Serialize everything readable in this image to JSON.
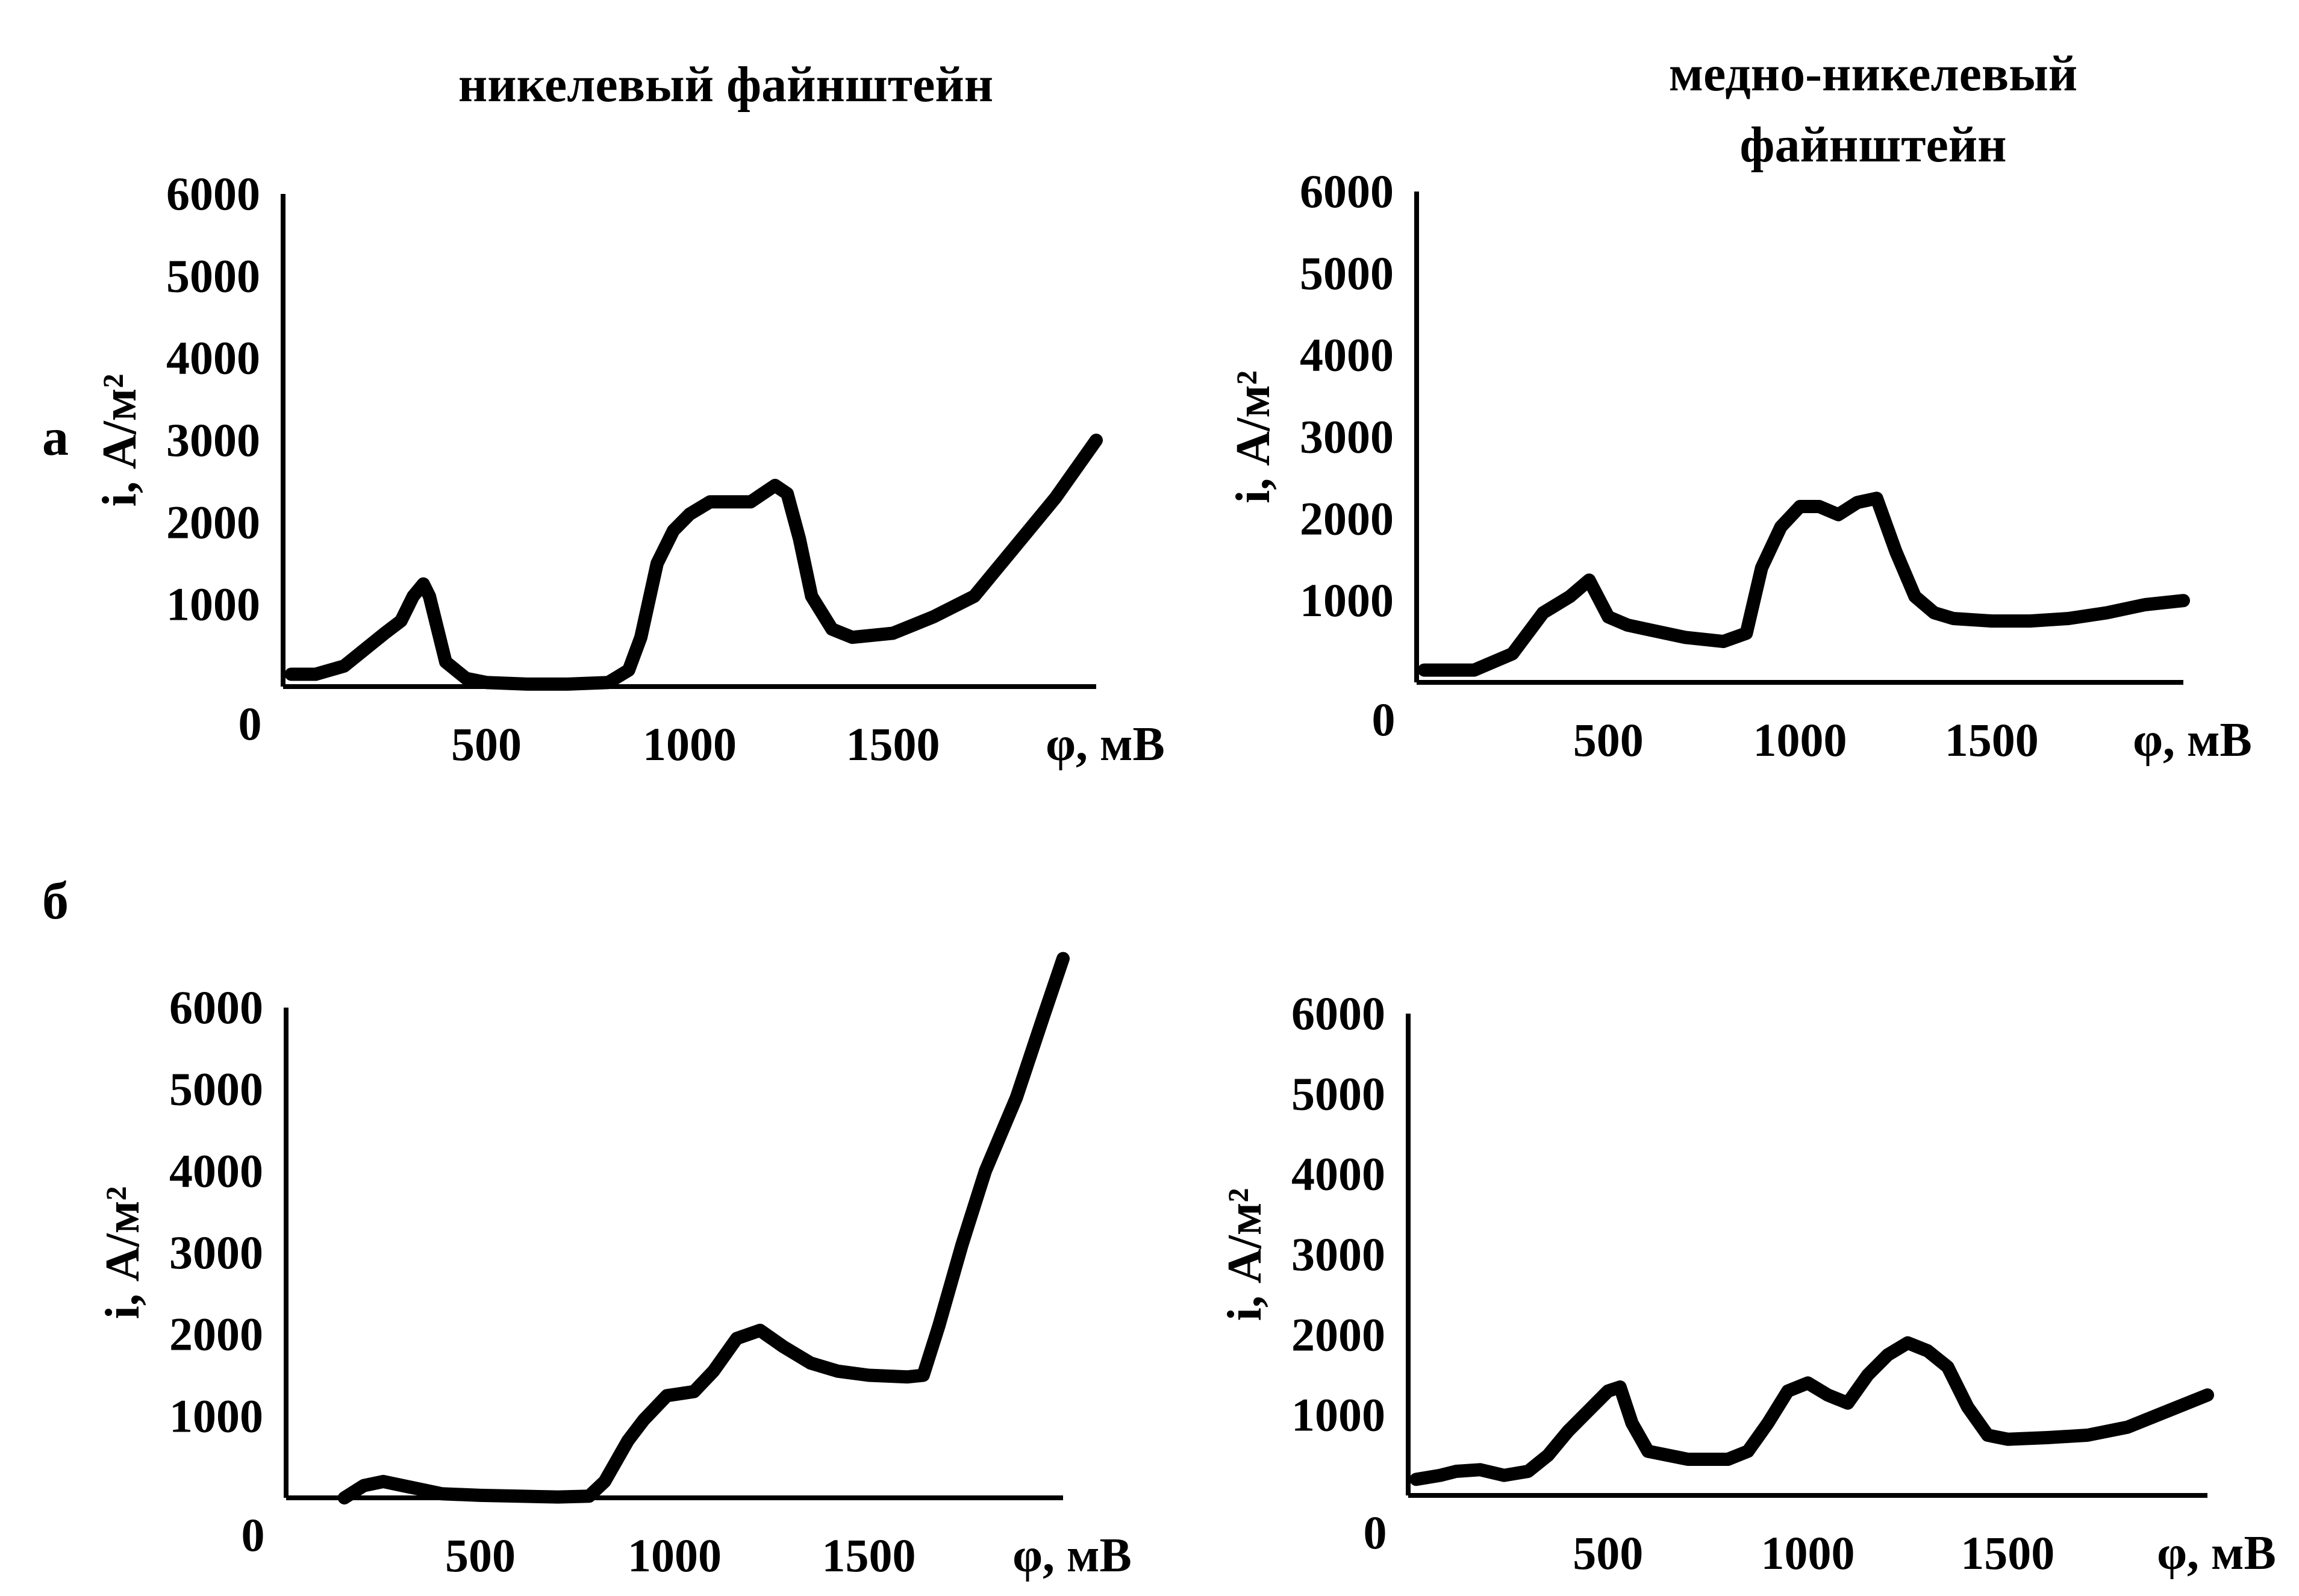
{
  "headings": {
    "left": "никелевый файнштейн",
    "right_line1": "медно-никелевый",
    "right_line2": "файнштейн"
  },
  "row_labels": {
    "a": "а",
    "b": "б"
  },
  "chart_data": [
    {
      "type": "line",
      "xlabel": "φ, мВ",
      "ylabel": "i, А/м²",
      "origin_label": "0",
      "xticks": [
        500,
        1000,
        1500
      ],
      "yticks": [
        1000,
        2000,
        3000,
        4000,
        5000,
        6000
      ],
      "xlim": [
        0,
        2000
      ],
      "ylim": [
        0,
        6000
      ],
      "series": [
        {
          "x": [
            20,
            80,
            150,
            200,
            250,
            290,
            320,
            345,
            360,
            400,
            450,
            500,
            600,
            700,
            800,
            850,
            880,
            920,
            960,
            1000,
            1050,
            1100,
            1150,
            1180,
            1210,
            1240,
            1270,
            1300,
            1350,
            1400,
            1500,
            1600,
            1700,
            1800,
            1900,
            2000
          ],
          "y": [
            150,
            150,
            250,
            450,
            650,
            800,
            1100,
            1250,
            1100,
            300,
            100,
            50,
            30,
            30,
            50,
            200,
            600,
            1500,
            1900,
            2100,
            2250,
            2250,
            2250,
            2350,
            2450,
            2350,
            1800,
            1100,
            700,
            600,
            650,
            850,
            1100,
            1700,
            2300,
            3000
          ]
        }
      ]
    },
    {
      "type": "line",
      "xlabel": "φ, мВ",
      "ylabel": "i, А/м²",
      "origin_label": "0",
      "xticks": [
        500,
        1000,
        1500
      ],
      "yticks": [
        1000,
        2000,
        3000,
        4000,
        5000,
        6000
      ],
      "xlim": [
        0,
        2000
      ],
      "ylim": [
        0,
        6000
      ],
      "series": [
        {
          "x": [
            20,
            150,
            250,
            330,
            400,
            450,
            500,
            550,
            600,
            700,
            800,
            860,
            900,
            950,
            1000,
            1050,
            1100,
            1150,
            1200,
            1250,
            1300,
            1350,
            1400,
            1500,
            1600,
            1700,
            1800,
            1900,
            2000
          ],
          "y": [
            150,
            150,
            350,
            850,
            1050,
            1250,
            800,
            700,
            650,
            550,
            500,
            600,
            1400,
            1900,
            2150,
            2150,
            2050,
            2200,
            2250,
            1600,
            1050,
            850,
            780,
            750,
            750,
            780,
            850,
            950,
            1000
          ]
        }
      ]
    },
    {
      "type": "line",
      "xlabel": "φ, мВ",
      "ylabel": "i, А/м²",
      "origin_label": "0",
      "xticks": [
        500,
        1000,
        1500
      ],
      "yticks": [
        1000,
        2000,
        3000,
        4000,
        5000,
        6000
      ],
      "xlim": [
        0,
        2000
      ],
      "ylim": [
        0,
        6000
      ],
      "series": [
        {
          "x": [
            150,
            200,
            250,
            300,
            350,
            400,
            500,
            600,
            700,
            780,
            820,
            880,
            920,
            980,
            1050,
            1100,
            1160,
            1220,
            1280,
            1350,
            1420,
            1500,
            1600,
            1640,
            1680,
            1740,
            1800,
            1880,
            1950,
            2000
          ],
          "y": [
            0,
            150,
            200,
            150,
            100,
            50,
            30,
            20,
            10,
            20,
            200,
            700,
            950,
            1250,
            1300,
            1550,
            1950,
            2050,
            1850,
            1650,
            1550,
            1500,
            1480,
            1500,
            2100,
            3100,
            4000,
            4900,
            5900,
            6600
          ]
        }
      ]
    },
    {
      "type": "line",
      "xlabel": "φ, мВ",
      "ylabel": "i, А/м²",
      "origin_label": "0",
      "xticks": [
        500,
        1000,
        1500
      ],
      "yticks": [
        1000,
        2000,
        3000,
        4000,
        5000,
        6000
      ],
      "xlim": [
        0,
        2000
      ],
      "ylim": [
        0,
        6000
      ],
      "series": [
        {
          "x": [
            20,
            80,
            120,
            180,
            240,
            300,
            350,
            400,
            450,
            500,
            530,
            560,
            600,
            700,
            800,
            850,
            900,
            950,
            1000,
            1050,
            1100,
            1150,
            1200,
            1250,
            1300,
            1350,
            1400,
            1450,
            1500,
            1600,
            1700,
            1800,
            1900,
            2000
          ],
          "y": [
            200,
            250,
            300,
            320,
            250,
            300,
            500,
            800,
            1050,
            1300,
            1350,
            900,
            550,
            450,
            450,
            550,
            900,
            1300,
            1400,
            1250,
            1150,
            1500,
            1750,
            1900,
            1800,
            1600,
            1100,
            750,
            700,
            720,
            750,
            850,
            1050,
            1250
          ]
        }
      ]
    }
  ]
}
